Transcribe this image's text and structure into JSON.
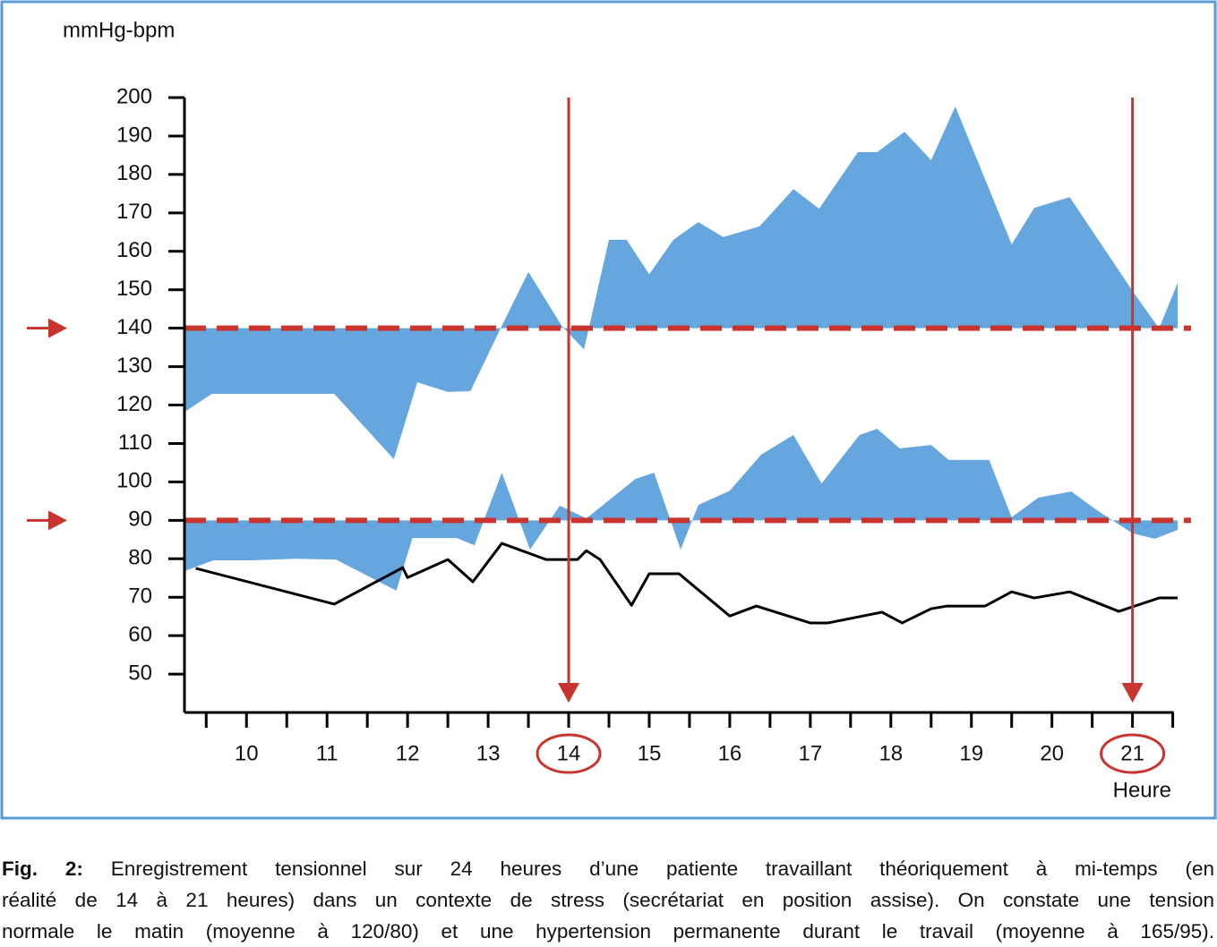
{
  "chart_data": {
    "type": "area-line",
    "ylabel": "mmHg-bpm",
    "xlabel": "Heure",
    "xlim": [
      9.23,
      21.56
    ],
    "ylim": [
      40,
      200
    ],
    "yticks": [
      50,
      60,
      70,
      80,
      90,
      100,
      110,
      120,
      130,
      140,
      150,
      160,
      170,
      180,
      190,
      200
    ],
    "xticks": [
      10,
      11,
      12,
      13,
      14,
      15,
      16,
      17,
      18,
      19,
      20,
      21
    ],
    "xtick_marks": [
      9.5,
      10,
      10.5,
      11,
      11.5,
      12,
      12.5,
      13,
      13.5,
      14,
      14.5,
      15,
      15.5,
      16,
      16.5,
      17,
      17.5,
      18,
      18.5,
      19,
      19.5,
      20,
      20.5,
      21,
      21.5
    ],
    "thresholds": [
      140,
      90
    ],
    "threshold_color": "#c9342e",
    "highlight_x": [
      14,
      21
    ],
    "highlight_color": "#c9342e",
    "series": [
      {
        "kind": "area",
        "baseline": 140,
        "color": "#66a6de",
        "x": [
          9.23,
          9.57,
          11.09,
          11.83,
          12.12,
          12.5,
          12.78,
          13.17,
          13.5,
          13.92,
          14.19,
          14.5,
          14.72,
          15,
          15.3,
          15.61,
          15.92,
          16.37,
          16.79,
          17.11,
          17.59,
          17.83,
          18.17,
          18.5,
          18.8,
          19.5,
          19.78,
          20.22,
          21,
          21.33,
          21.56
        ],
        "values": [
          118.2,
          122.9,
          122.9,
          105.9,
          125.9,
          123.4,
          123.6,
          140.6,
          154.6,
          140.4,
          134.5,
          163,
          163,
          154,
          163,
          167.6,
          163.7,
          166.5,
          176.2,
          171.1,
          185.8,
          185.8,
          191.1,
          183.7,
          197.7,
          161.8,
          171.3,
          174.1,
          149.7,
          139.9,
          151.8
        ]
      },
      {
        "kind": "area",
        "baseline": 90,
        "color": "#66a6de",
        "x": [
          9.23,
          9.59,
          10.06,
          10.61,
          11.11,
          11.86,
          12.06,
          12.61,
          12.83,
          13.17,
          13.52,
          13.89,
          14.22,
          14.83,
          15.06,
          15.39,
          15.61,
          16.0,
          16.39,
          16.79,
          17.14,
          17.61,
          17.83,
          18.11,
          18.5,
          18.72,
          19.22,
          19.5,
          19.83,
          20.24,
          20.56,
          21,
          21.28,
          21.56
        ],
        "values": [
          76.8,
          79.6,
          79.6,
          80.0,
          79.8,
          71.7,
          85.4,
          85.4,
          83.5,
          102.4,
          82.4,
          93.8,
          90.5,
          100.8,
          102.4,
          82.4,
          94.0,
          97.7,
          107.1,
          112.2,
          99.6,
          112.2,
          113.8,
          108.7,
          109.6,
          105.7,
          105.7,
          90.8,
          95.9,
          97.5,
          92.6,
          86.6,
          85.2,
          87.5
        ]
      },
      {
        "kind": "line",
        "color": "#000000",
        "x": [
          9.37,
          11.09,
          11.94,
          12.0,
          12.5,
          12.81,
          13.17,
          13.72,
          14.11,
          14.22,
          14.39,
          14.78,
          15.0,
          15.37,
          16.0,
          16.33,
          17.0,
          17.22,
          17.89,
          18.14,
          18.5,
          18.7,
          19.17,
          19.5,
          19.78,
          20.22,
          20.83,
          21.33,
          21.56
        ],
        "values": [
          77.5,
          68.2,
          77.7,
          75.1,
          79.8,
          74.0,
          84.0,
          79.8,
          79.8,
          82.1,
          79.8,
          67.9,
          76.1,
          76.1,
          65.1,
          67.7,
          63.3,
          63.3,
          66.1,
          63.3,
          67.0,
          67.7,
          67.7,
          71.4,
          69.8,
          71.4,
          66.3,
          69.8,
          69.8
        ]
      }
    ]
  },
  "caption": {
    "label": "Fig. 2:",
    "lines": [
      "Enregistrement tensionnel sur 24 heures d’une patiente travaillant théoriquement à mi-temps (en",
      "réalité de 14 à 21 heures) dans un contexte de stress (secrétariat en position assise). On constate une tension",
      "normale le matin (moyenne à 120/80) et une hypertension permanente durant le travail (moyenne à 165/95)."
    ]
  }
}
